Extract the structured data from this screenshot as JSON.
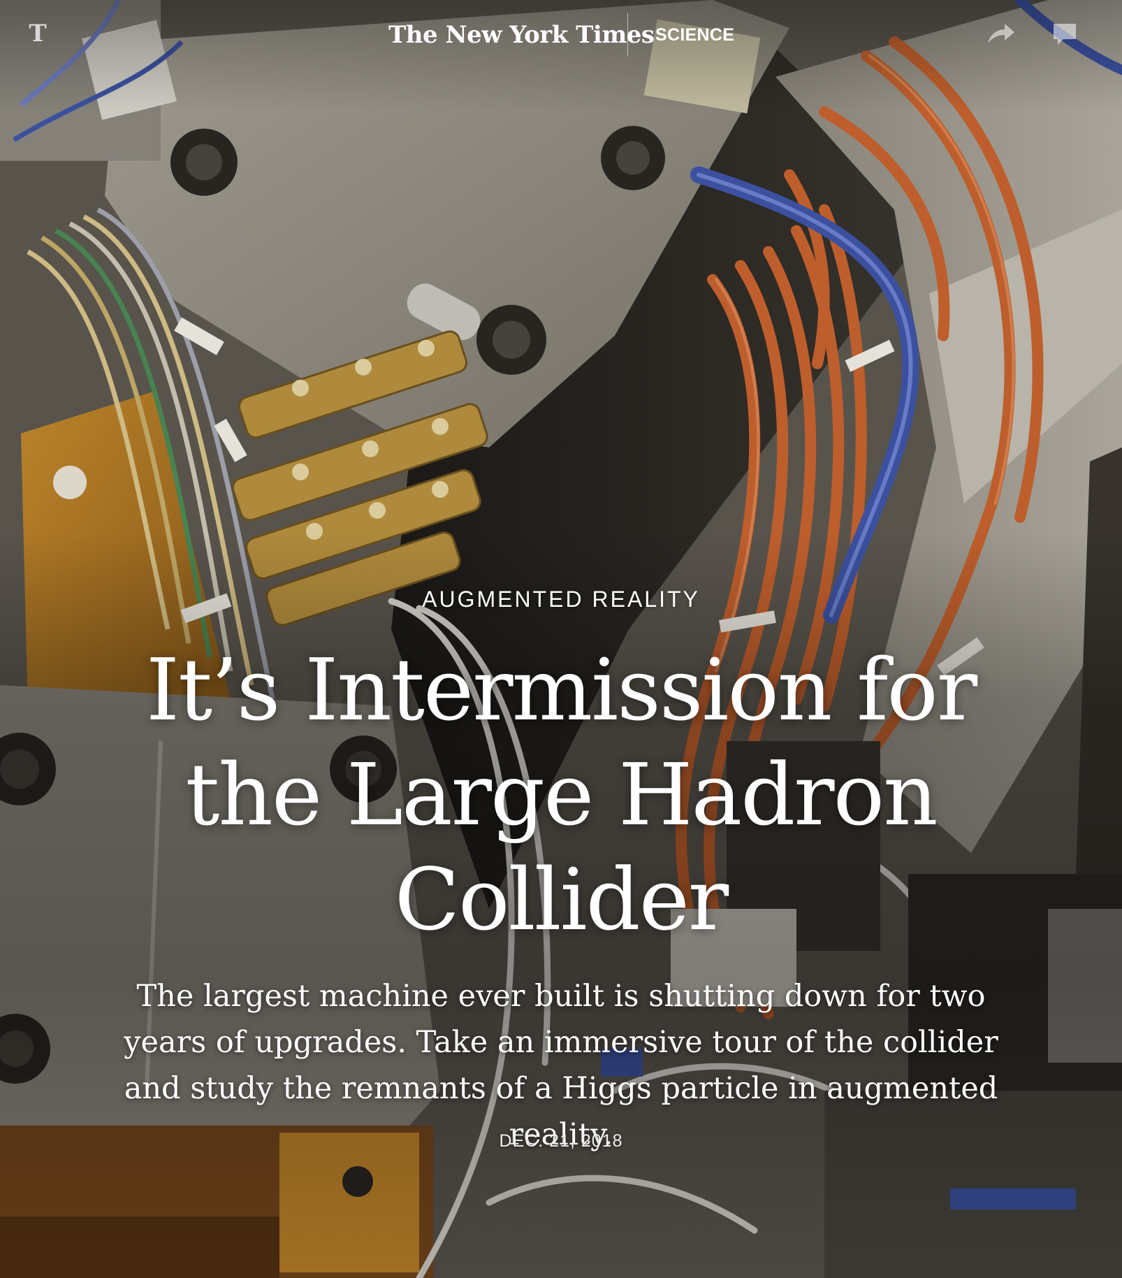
{
  "header": {
    "logo_mark": "T",
    "masthead": "The New York Times",
    "section": "SCIENCE",
    "share_icon": "share-arrow-icon",
    "comment_icon": "comment-bubble-icon"
  },
  "article": {
    "kicker": "AUGMENTED REALITY",
    "headline": "It’s Intermission for the Large Hadron Collider",
    "summary": "The largest machine ever built is shutting down for two years of upgrades. Take an immersive tour of the collider and study the remnants of a Higgs particle in augmented reality.",
    "date": "DEC. 21, 2018"
  },
  "colors": {
    "text": "#ffffff",
    "cable_orange": "#c8632e",
    "cable_blue": "#3e55a8",
    "metal": "#9b9588",
    "brass": "#b8913f"
  }
}
